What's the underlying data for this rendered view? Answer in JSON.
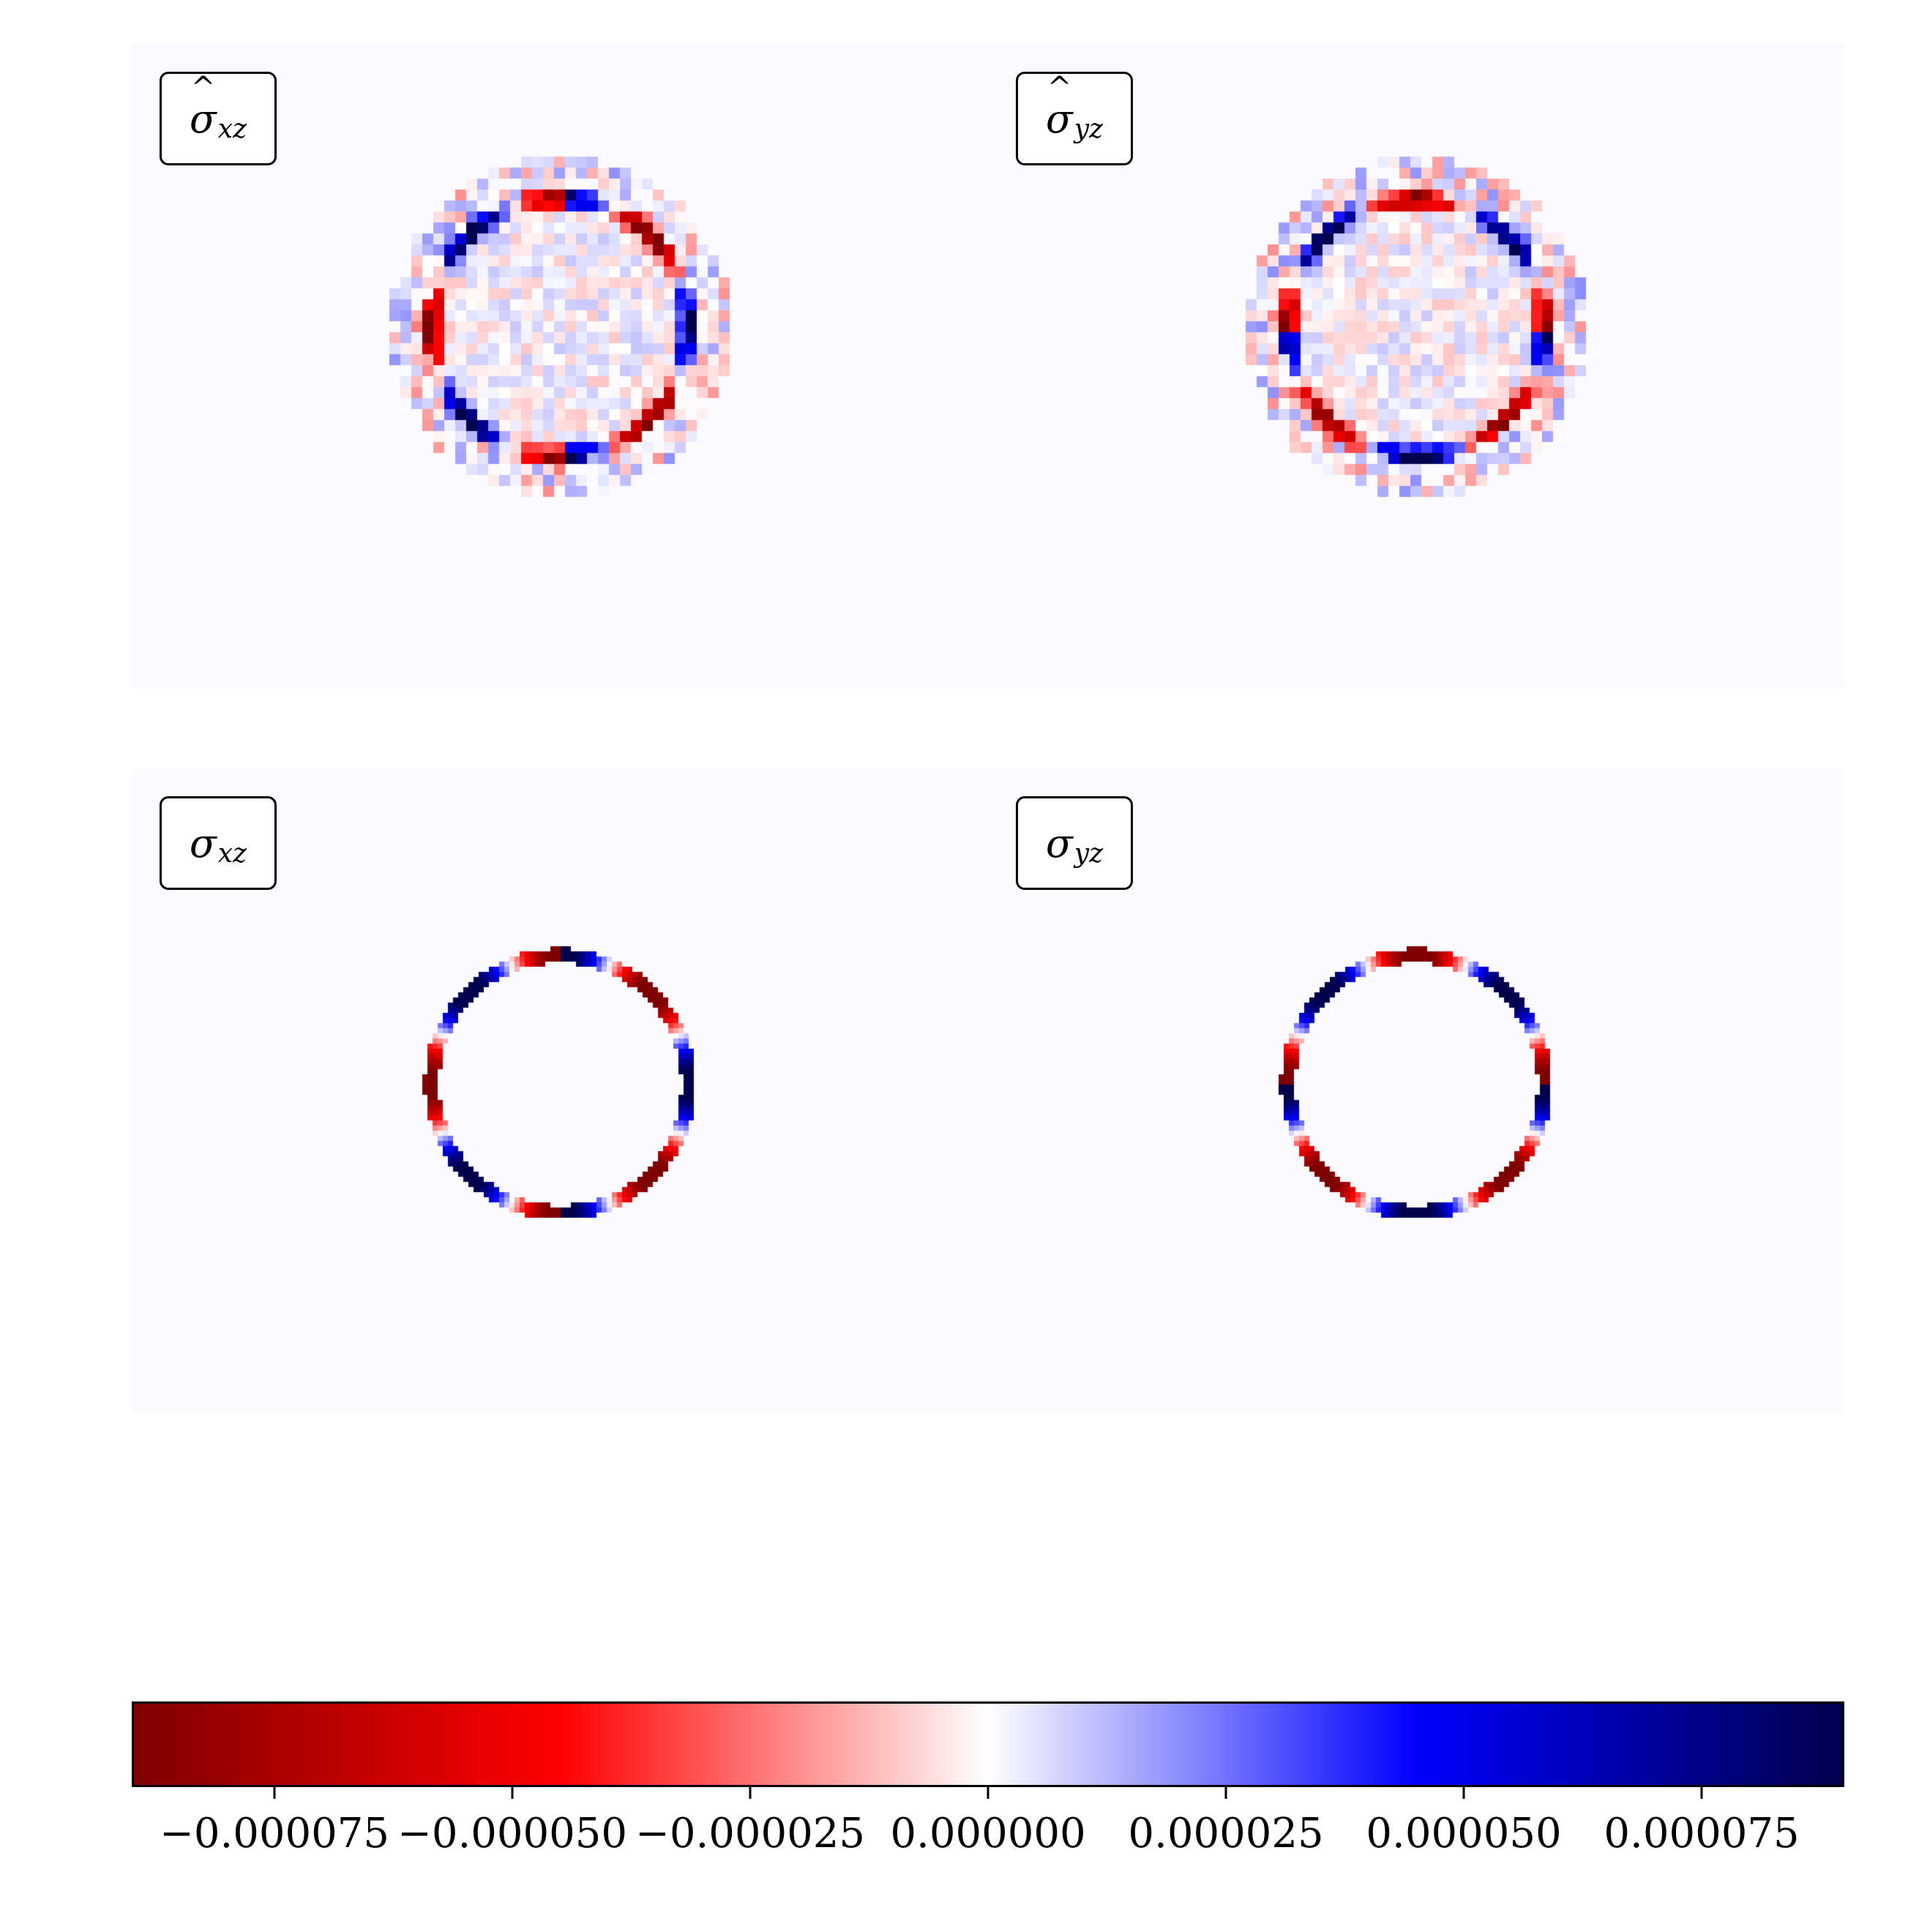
{
  "panels": [
    {
      "key": "hat_xz",
      "label_base": "σ",
      "label_sub": "xz",
      "hat": true,
      "component": "xz",
      "mode": "noisy"
    },
    {
      "key": "hat_yz",
      "label_base": "σ",
      "label_sub": "yz",
      "hat": true,
      "component": "yz",
      "mode": "noisy"
    },
    {
      "key": "xz",
      "label_base": "σ",
      "label_sub": "xz",
      "hat": false,
      "component": "xz",
      "mode": "clean"
    },
    {
      "key": "yz",
      "label_base": "σ",
      "label_sub": "yz",
      "hat": false,
      "component": "yz",
      "mode": "clean"
    }
  ],
  "chart_data": {
    "type": "heatmap",
    "colormap": "seismic (reversed): dark red for negative, white at 0, dark blue for positive",
    "colors": {
      "neg_dark": "#7f0000",
      "neg": "#ff0000",
      "zero": "#ffffff",
      "pos": "#0000ff",
      "pos_dark": "#00004c",
      "background": "#fbfbff"
    },
    "colorbar": {
      "orientation": "horizontal",
      "vmin": -9e-05,
      "vmax": 9e-05,
      "ticks": [
        -7.5e-05,
        -5e-05,
        -2.5e-05,
        0.0,
        2.5e-05,
        5e-05,
        7.5e-05
      ],
      "tick_labels": [
        "−0.000075",
        "−0.000050",
        "−0.000025",
        "0.000000",
        "0.000025",
        "0.000050",
        "0.000075"
      ]
    },
    "description_values": {
      "ring_relative_radius": 0.3,
      "ring_peak_magnitude": 9e-05
    }
  }
}
